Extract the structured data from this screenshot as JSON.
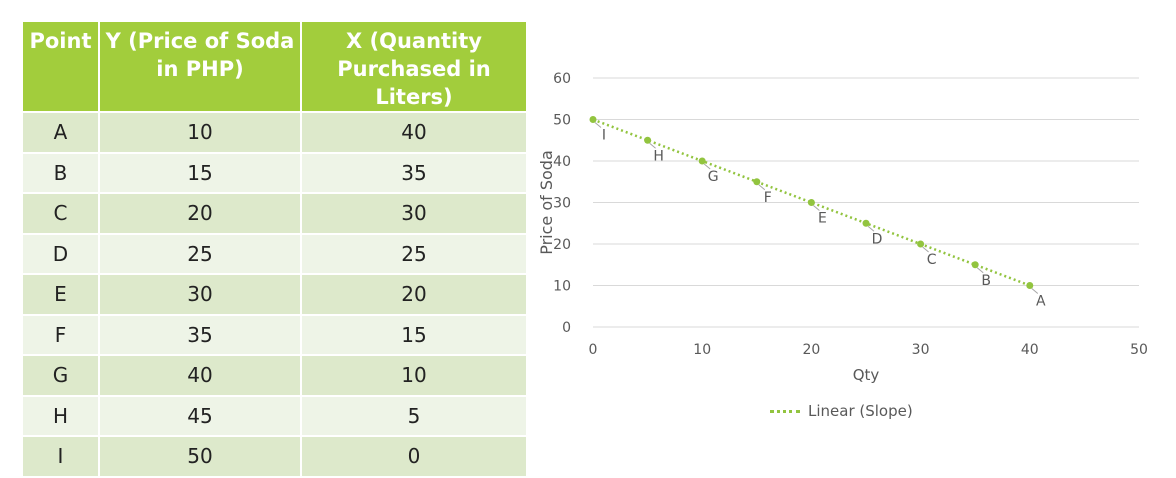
{
  "table": {
    "headers": [
      "Point",
      "Y (Price of Soda in PHP)",
      "X (Quantity Purchased in Liters)"
    ],
    "rows": [
      [
        "A",
        "10",
        "40"
      ],
      [
        "B",
        "15",
        "35"
      ],
      [
        "C",
        "20",
        "30"
      ],
      [
        "D",
        "25",
        "25"
      ],
      [
        "E",
        "30",
        "20"
      ],
      [
        "F",
        "35",
        "15"
      ],
      [
        "G",
        "40",
        "10"
      ],
      [
        "H",
        "45",
        "5"
      ],
      [
        "I",
        "50",
        "0"
      ]
    ]
  },
  "colors": {
    "header_bg": "#a2cd3c",
    "row_odd": "#dde9cb",
    "row_even": "#eef4e7",
    "series": "#92c43f",
    "grid": "#d9d9d9"
  },
  "chart_data": {
    "type": "scatter",
    "xlabel": "Qty",
    "ylabel": "Price of Soda",
    "xlim": [
      0,
      50
    ],
    "ylim": [
      0,
      60
    ],
    "xticks": [
      0,
      10,
      20,
      30,
      40,
      50
    ],
    "yticks": [
      0,
      10,
      20,
      30,
      40,
      50,
      60
    ],
    "grid": "horizontal",
    "legend_position": "bottom",
    "points": [
      {
        "label": "A",
        "x": 40,
        "y": 10
      },
      {
        "label": "B",
        "x": 35,
        "y": 15
      },
      {
        "label": "C",
        "x": 30,
        "y": 20
      },
      {
        "label": "D",
        "x": 25,
        "y": 25
      },
      {
        "label": "E",
        "x": 20,
        "y": 30
      },
      {
        "label": "F",
        "x": 15,
        "y": 35
      },
      {
        "label": "G",
        "x": 10,
        "y": 40
      },
      {
        "label": "H",
        "x": 5,
        "y": 45
      },
      {
        "label": "I",
        "x": 0,
        "y": 50
      }
    ],
    "trendline": {
      "name": "Linear (Slope)",
      "type": "linear"
    }
  }
}
